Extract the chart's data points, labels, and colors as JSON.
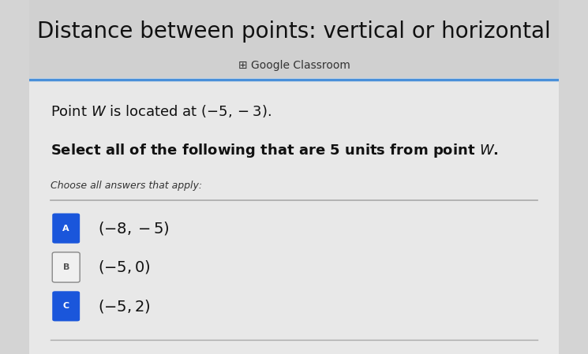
{
  "title": "Distance between points: vertical or horizontal",
  "subtitle": "⊞ Google Classroom",
  "blue_line_color": "#4a90d9",
  "body_text_line1": "Point $W$ is located at $(-5,-3)$.",
  "body_text_line2": "Select all of the following that are 5 units from point $W$.",
  "choose_label": "Choose all answers that apply:",
  "options": [
    {
      "label": "A",
      "text": "$(-8,-5)$",
      "badge_color": "#1a56db",
      "badge_text_color": "#ffffff",
      "badge_style": "filled"
    },
    {
      "label": "B",
      "text": "$(-5,0)$",
      "badge_color": "#f0f0f0",
      "badge_text_color": "#555555",
      "badge_style": "outline"
    },
    {
      "label": "C",
      "text": "$(-5,2)$",
      "badge_color": "#1a56db",
      "badge_text_color": "#ffffff",
      "badge_style": "filled"
    }
  ],
  "title_fontsize": 20,
  "subtitle_fontsize": 10,
  "body_fontsize": 13,
  "choose_fontsize": 9,
  "option_fontsize": 14
}
